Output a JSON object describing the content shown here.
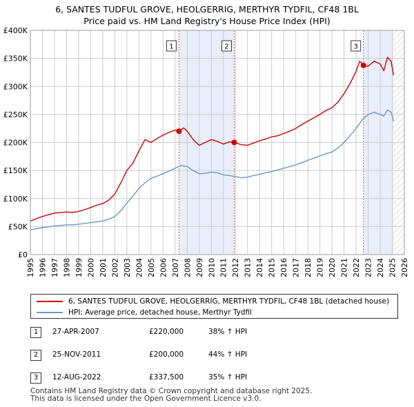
{
  "title_line1": "6, SANTES TUDFUL GROVE, HEOLGERRIG, MERTHYR TYDFIL, CF48 1BL",
  "title_line2": "Price paid vs. HM Land Registry's House Price Index (HPI)",
  "colors": {
    "property": "#cc0000",
    "hpi": "#6699cc",
    "shade": "#e8eefa",
    "marker_line": "#e05050",
    "grid": "#cccccc"
  },
  "chart_data": {
    "type": "line",
    "title": "6, SANTES TUDFUL GROVE, HEOLGERRIG, MERTHYR TYDFIL, CF48 1BL — Price paid vs. HM Land Registry's House Price Index (HPI)",
    "xlim": [
      1995,
      2026
    ],
    "ylim": [
      0,
      400000
    ],
    "x_ticks": [
      "1995",
      "1996",
      "1997",
      "1998",
      "1999",
      "2000",
      "2001",
      "2002",
      "2003",
      "2004",
      "2005",
      "2006",
      "2007",
      "2008",
      "2009",
      "2010",
      "2011",
      "2012",
      "2013",
      "2014",
      "2015",
      "2016",
      "2017",
      "2018",
      "2019",
      "2020",
      "2021",
      "2022",
      "2023",
      "2024",
      "2025",
      "2026"
    ],
    "y_ticks": [
      {
        "value": 0,
        "label": "£0"
      },
      {
        "value": 50000,
        "label": "£50K"
      },
      {
        "value": 100000,
        "label": "£100K"
      },
      {
        "value": 150000,
        "label": "£150K"
      },
      {
        "value": 200000,
        "label": "£200K"
      },
      {
        "value": 250000,
        "label": "£250K"
      },
      {
        "value": 300000,
        "label": "£300K"
      },
      {
        "value": 350000,
        "label": "£350K"
      },
      {
        "value": 400000,
        "label": "£400K"
      }
    ],
    "shaded_ranges": [
      [
        2007.32,
        2011.9
      ],
      [
        2022.61,
        2025.1
      ]
    ],
    "hatched_from": 2025.1,
    "series": [
      {
        "name": "6, SANTES TUDFUL GROVE, HEOLGERRIG, MERTHYR TYDFIL, CF48 1BL (detached house)",
        "color": "#cc0000",
        "x": [
          1995.0,
          1995.5,
          1996.0,
          1996.5,
          1997.0,
          1997.5,
          1998.0,
          1998.5,
          1999.0,
          1999.5,
          2000.0,
          2000.5,
          2001.0,
          2001.5,
          2002.0,
          2002.5,
          2003.0,
          2003.5,
          2004.0,
          2004.5,
          2005.0,
          2005.5,
          2006.0,
          2006.5,
          2007.0,
          2007.32,
          2007.7,
          2008.0,
          2008.5,
          2009.0,
          2009.5,
          2010.0,
          2010.5,
          2011.0,
          2011.5,
          2011.9,
          2012.5,
          2013.0,
          2013.5,
          2014.0,
          2014.5,
          2015.0,
          2015.5,
          2016.0,
          2016.5,
          2017.0,
          2017.5,
          2018.0,
          2018.5,
          2019.0,
          2019.5,
          2020.0,
          2020.5,
          2021.0,
          2021.5,
          2022.0,
          2022.3,
          2022.61,
          2023.0,
          2023.5,
          2024.0,
          2024.3,
          2024.6,
          2024.9,
          2025.1
        ],
        "values": [
          60000,
          64000,
          68000,
          71000,
          74000,
          75000,
          76000,
          75000,
          77000,
          80000,
          84000,
          88000,
          91000,
          97000,
          108000,
          128000,
          150000,
          163000,
          185000,
          205000,
          200000,
          207000,
          213000,
          218000,
          222000,
          220000,
          226000,
          220000,
          205000,
          195000,
          200000,
          205000,
          202000,
          197000,
          201000,
          200000,
          196000,
          195000,
          199000,
          203000,
          206000,
          210000,
          212000,
          216000,
          220000,
          225000,
          232000,
          238000,
          244000,
          250000,
          257000,
          262000,
          272000,
          287000,
          305000,
          327000,
          345000,
          337500,
          336000,
          345000,
          340000,
          328000,
          352000,
          345000,
          320000
        ]
      },
      {
        "name": "HPI: Average price, detached house, Merthyr Tydfil",
        "color": "#6699cc",
        "x": [
          1995.0,
          1995.5,
          1996.0,
          1996.5,
          1997.0,
          1997.5,
          1998.0,
          1998.5,
          1999.0,
          1999.5,
          2000.0,
          2000.5,
          2001.0,
          2001.5,
          2002.0,
          2002.5,
          2003.0,
          2003.5,
          2004.0,
          2004.5,
          2005.0,
          2005.5,
          2006.0,
          2006.5,
          2007.0,
          2007.5,
          2008.0,
          2008.5,
          2009.0,
          2009.5,
          2010.0,
          2010.5,
          2011.0,
          2011.5,
          2012.0,
          2012.5,
          2013.0,
          2013.5,
          2014.0,
          2014.5,
          2015.0,
          2015.5,
          2016.0,
          2016.5,
          2017.0,
          2017.5,
          2018.0,
          2018.5,
          2019.0,
          2019.5,
          2020.0,
          2020.5,
          2021.0,
          2021.5,
          2022.0,
          2022.5,
          2023.0,
          2023.5,
          2024.0,
          2024.3,
          2024.6,
          2024.9,
          2025.1
        ],
        "values": [
          44000,
          46000,
          48000,
          49500,
          51000,
          52000,
          53000,
          53000,
          54000,
          55500,
          57000,
          58500,
          60000,
          63000,
          68000,
          78000,
          92000,
          104000,
          118000,
          128000,
          136000,
          140000,
          144000,
          149000,
          154000,
          159000,
          157000,
          150000,
          144000,
          145000,
          147000,
          146000,
          142000,
          141000,
          139000,
          137000,
          138000,
          141000,
          143000,
          146000,
          148000,
          151000,
          154000,
          157000,
          160000,
          164000,
          168000,
          172000,
          176000,
          180000,
          183000,
          190000,
          200000,
          212000,
          225000,
          240000,
          250000,
          254000,
          250000,
          247000,
          258000,
          254000,
          238000
        ]
      }
    ],
    "sale_points": [
      {
        "label": "1",
        "x": 2007.32,
        "value": 220000
      },
      {
        "label": "2",
        "x": 2011.9,
        "value": 200000
      },
      {
        "label": "3",
        "x": 2022.61,
        "value": 337500
      }
    ]
  },
  "legend": {
    "property_label": "6, SANTES TUDFUL GROVE, HEOLGERRIG, MERTHYR TYDFIL, CF48 1BL (detached house)",
    "hpi_label": "HPI: Average price, detached house, Merthyr Tydfil"
  },
  "sales": [
    {
      "num": "1",
      "date": "27-APR-2007",
      "price": "£220,000",
      "pct": "38% ↑ HPI"
    },
    {
      "num": "2",
      "date": "25-NOV-2011",
      "price": "£200,000",
      "pct": "44% ↑ HPI"
    },
    {
      "num": "3",
      "date": "12-AUG-2022",
      "price": "£337,500",
      "pct": "35% ↑ HPI"
    }
  ],
  "footer": {
    "line1": "Contains HM Land Registry data © Crown copyright and database right 2025.",
    "line2": "This data is licensed under the Open Government Licence v3.0."
  }
}
